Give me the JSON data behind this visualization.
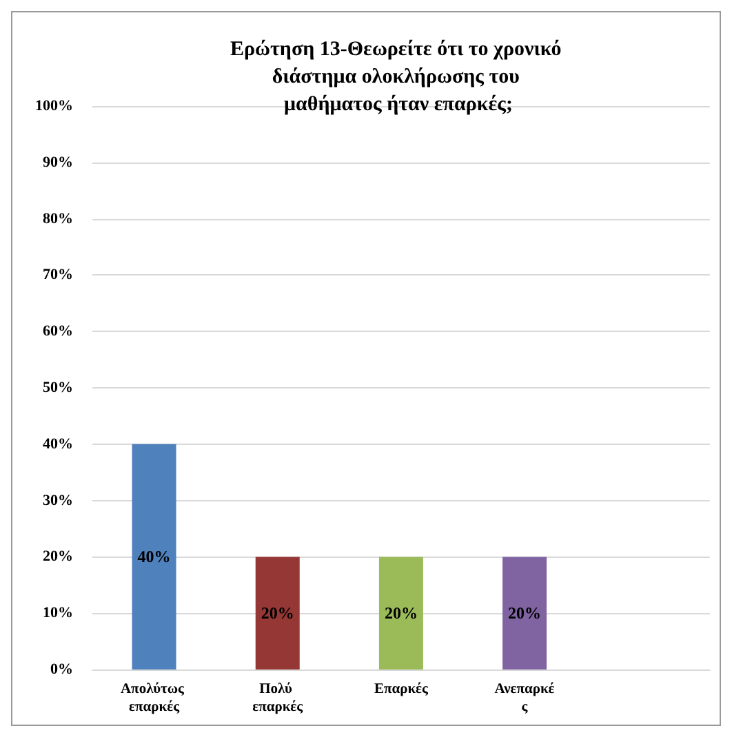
{
  "chart_data": {
    "type": "bar",
    "title": "Ερώτηση 13-Θεωρείτε ότι το χρονικό διάστημα ολοκλήρωσης του μαθήματος ήταν επαρκές;",
    "categories": [
      "Απολύτως επαρκές",
      "Πολύ επαρκές",
      "Επαρκές",
      "Ανεπαρκές",
      null
    ],
    "values": [
      40,
      20,
      20,
      20,
      null
    ],
    "colors": [
      "#4f81bd",
      "#953735",
      "#9bbb59",
      "#8064a2",
      null
    ],
    "value_labels": [
      "40%",
      "20%",
      "20%",
      "20%",
      null
    ],
    "ylim": [
      0,
      100
    ],
    "yticks": [
      {
        "value": 0,
        "label": "0%"
      },
      {
        "value": 10,
        "label": "10%"
      },
      {
        "value": 20,
        "label": "20%"
      },
      {
        "value": 30,
        "label": "30%"
      },
      {
        "value": 40,
        "label": "40%"
      },
      {
        "value": 50,
        "label": "50%"
      },
      {
        "value": 60,
        "label": "60%"
      },
      {
        "value": 70,
        "label": "70%"
      },
      {
        "value": 80,
        "label": "80%"
      },
      {
        "value": 90,
        "label": "90%"
      },
      {
        "value": 100,
        "label": "100%"
      }
    ],
    "grid": "y"
  }
}
